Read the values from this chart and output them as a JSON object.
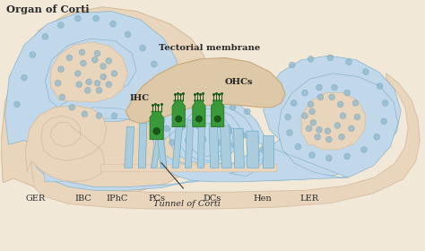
{
  "bg_color": "#f2e8d8",
  "light_blue": "#c0d8ea",
  "light_blue2": "#aaccdd",
  "cell_line": "#8ab4cc",
  "beige_body": "#e8d5bc",
  "beige_dark": "#d4bea0",
  "green_dark": "#2a7a2a",
  "green_mid": "#3a9a3a",
  "green_light": "#4db04d",
  "dot_color": "#90b8cc",
  "text_color": "#2a2a2a",
  "tectorial_color": "#ddc8a8",
  "tectorial_edge": "#c8a878",
  "figsize": [
    4.74,
    2.8
  ],
  "dpi": 100,
  "labels": {
    "title": "Organ of Corti",
    "tectorial": "Tectorial membrane",
    "IHC": "IHC",
    "OHCs": "OHCs",
    "GER": "GER",
    "IBC": "IBC",
    "IPhC": "IPhC",
    "PCs": "PCs",
    "DCs": "DCs",
    "Hen": "Hen",
    "LER": "LER",
    "tunnel": "Tunnel of Corti"
  }
}
